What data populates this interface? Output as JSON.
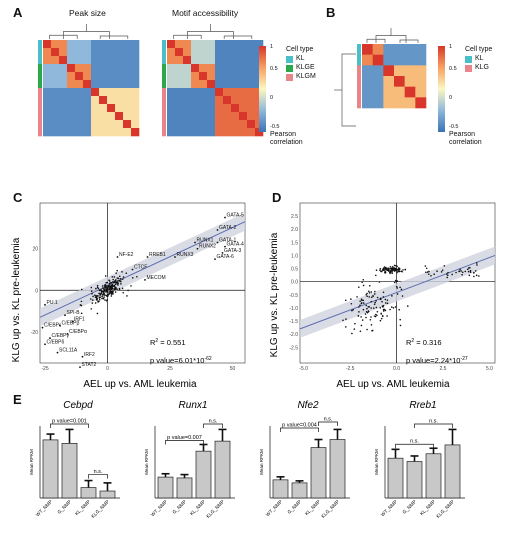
{
  "panels": {
    "a": {
      "letter": "A",
      "titles": [
        "Peak size",
        "Motif accessibility"
      ]
    },
    "b": {
      "letter": "B"
    },
    "c": {
      "letter": "C"
    },
    "d": {
      "letter": "D"
    },
    "e": {
      "letter": "E"
    }
  },
  "legend_a": {
    "ticks": [
      "1",
      "0.5",
      "0",
      "-0.5"
    ],
    "title": "Pearson correlation",
    "cell_type_title": "Cell type",
    "cell_types": [
      "KL",
      "KLGE",
      "KLGM"
    ],
    "cell_colors": [
      "#49bfc9",
      "#2aa84a",
      "#e8848a"
    ]
  },
  "legend_b": {
    "ticks": [
      "1",
      "0.5",
      "0",
      "-0.5"
    ],
    "title": "Pearson correlation",
    "cell_type_title": "Cell type",
    "cell_types": [
      "KL",
      "KLG"
    ],
    "cell_colors": [
      "#49bfc9",
      "#e8848a"
    ]
  },
  "colors": {
    "hi": "#d8362a",
    "mid": "#fbf7c0",
    "lo": "#3a73b6",
    "bar": "#c8c8c8",
    "trend": "#5b6bb0",
    "band": "#cfd3de"
  },
  "chart_data": [
    {
      "type": "scatter",
      "panel": "C",
      "xlabel": "AEL up vs. AML leukemia",
      "ylabel": "KLG up vs. KL pre-leukemia",
      "xlim": [
        -27,
        55
      ],
      "ylim": [
        -35,
        42
      ],
      "xticks": [
        "-25",
        "0",
        "25",
        "50"
      ],
      "yticks": [
        "20",
        "0",
        "-20"
      ],
      "r2_label": "R",
      "r2_value": "= 0.551",
      "p_label": "p value=6.01*10",
      "p_exp": "-62",
      "labeled_points": [
        {
          "label": "GATA-5",
          "x": 47,
          "y": 35
        },
        {
          "label": "GATA-2",
          "x": 44,
          "y": 29
        },
        {
          "label": "RUNX1",
          "x": 35,
          "y": 23
        },
        {
          "label": "GATA-1",
          "x": 44,
          "y": 23
        },
        {
          "label": "GATA-4",
          "x": 47,
          "y": 21
        },
        {
          "label": "RUNX2",
          "x": 36,
          "y": 20
        },
        {
          "label": "GATA-3",
          "x": 46,
          "y": 18
        },
        {
          "label": "GATA-6",
          "x": 43,
          "y": 15
        },
        {
          "label": "NF-E2",
          "x": 4,
          "y": 16
        },
        {
          "label": "RREB1",
          "x": 16,
          "y": 16
        },
        {
          "label": "RUNX3",
          "x": 27,
          "y": 16
        },
        {
          "label": "CTCF",
          "x": 10,
          "y": 10
        },
        {
          "label": "MECOM",
          "x": 15,
          "y": 5
        },
        {
          "label": "PU.1",
          "x": -25,
          "y": -7
        },
        {
          "label": "SPI-B",
          "x": -17,
          "y": -12
        },
        {
          "label": "IRF1",
          "x": -14,
          "y": -15
        },
        {
          "label": "C/EBPβ",
          "x": -19,
          "y": -17
        },
        {
          "label": "C/EBPε",
          "x": -26,
          "y": -18
        },
        {
          "label": "C/EBPα",
          "x": -16,
          "y": -21
        },
        {
          "label": "C/EBPγ",
          "x": -23,
          "y": -23
        },
        {
          "label": "C/EBPδ",
          "x": -25,
          "y": -26
        },
        {
          "label": "SCL11A",
          "x": -20,
          "y": -30
        },
        {
          "label": "IRF2",
          "x": -10,
          "y": -32
        },
        {
          "label": "STAT2",
          "x": -11,
          "y": -37
        }
      ],
      "fit": {
        "x": [
          -27,
          55
        ],
        "y": [
          -13,
          33
        ]
      }
    },
    {
      "type": "scatter",
      "panel": "D",
      "xlabel": "AEL up vs. AML leukemia",
      "ylabel": "KLG up vs. KL pre-leukemia",
      "xlim": [
        -5.2,
        5.3
      ],
      "ylim": [
        -3.1,
        3.0
      ],
      "xticks": [
        "-5.0",
        "-2.5",
        "0.0",
        "2.5",
        "5.0"
      ],
      "yticks": [
        "2.5",
        "2.0",
        "1.5",
        "1.0",
        "0.5",
        "0.0",
        "-0.5",
        "-1.0",
        "-1.5",
        "-2.0",
        "-2.5"
      ],
      "r2_label": "R",
      "r2_value": "= 0.316",
      "p_label": "p value=2.24*10",
      "p_exp": "-27",
      "fit": {
        "x": [
          -5.2,
          5.3
        ],
        "y": [
          -1.8,
          1.0
        ]
      }
    },
    {
      "type": "bar",
      "panel": "E",
      "ylabel": "Mean RPKM",
      "categories": [
        "WT_NMP",
        "G_NMP",
        "KL_NMP",
        "KLG_NMP"
      ],
      "genes": [
        {
          "name": "Cebpd",
          "values": [
            100,
            94,
            18,
            12
          ],
          "errors": [
            10,
            24,
            12,
            14
          ],
          "pval": "p value=0.001",
          "ns": "n.s."
        },
        {
          "name": "Runx1",
          "values": [
            25,
            24,
            56,
            68
          ],
          "errors": [
            4,
            4,
            8,
            14
          ],
          "pval": "p value=0.007",
          "ns": "n.s."
        },
        {
          "name": "Nfe2",
          "values": [
            18,
            15,
            50,
            58
          ],
          "errors": [
            3,
            2,
            8,
            10
          ],
          "pval": "p value=0.004",
          "ns": "n.s."
        },
        {
          "name": "Rreb1",
          "values": [
            36,
            33,
            40,
            48
          ],
          "errors": [
            8,
            5,
            5,
            14
          ],
          "ns": "n.s.",
          "ns2": "n.s."
        }
      ]
    }
  ]
}
